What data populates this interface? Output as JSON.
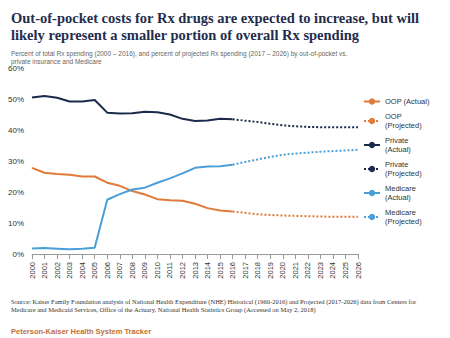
{
  "chart_data": {
    "type": "line",
    "title": "Out-of-pocket costs for Rx drugs are expected to increase, but will likely represent a smaller portion of overall Rx spending",
    "subtitle": "Percent of total Rx spending (2000 – 2016), and percent of projected Rx spending (2017 – 2026) by out-of-pocket vs. private insurance and Medicare",
    "source": "Source: Kaiser Family Foundation analysis of National Health Expenditure (NHE) Historical (1960-2016) and Projected (2017-2026) data from Centers for Medicare and Medicaid Services, Office of the Actuary, National Health Statistics Group (Accessed on May 2, 2018)",
    "footer": "Peterson-Kaiser Health System Tracker",
    "categories": [
      "2000",
      "2001",
      "2002",
      "2003",
      "2004",
      "2005",
      "2006",
      "2007",
      "2008",
      "2009",
      "2010",
      "2011",
      "2012",
      "2013",
      "2014",
      "2015",
      "2016",
      "2017",
      "2018",
      "2019",
      "2020",
      "2021",
      "2022",
      "2023",
      "2024",
      "2025",
      "2026"
    ],
    "series": [
      {
        "name": "OOP (Actual)",
        "color": "#e07b39",
        "line_style": "solid",
        "values": [
          27.8,
          26.2,
          25.8,
          25.6,
          25.0,
          25.0,
          23.0,
          22.0,
          20.3,
          19.2,
          17.7,
          17.3,
          17.2,
          16.2,
          14.8,
          14.0,
          13.7,
          null,
          null,
          null,
          null,
          null,
          null,
          null,
          null,
          null,
          null
        ]
      },
      {
        "name": "OOP (Projected)",
        "color": "#e07b39",
        "line_style": "dotted",
        "values": [
          null,
          null,
          null,
          null,
          null,
          null,
          null,
          null,
          null,
          null,
          null,
          null,
          null,
          null,
          null,
          null,
          13.7,
          13.3,
          12.8,
          12.6,
          12.4,
          12.3,
          12.2,
          12.1,
          12.0,
          12.0,
          12.0
        ]
      },
      {
        "name": "Private (Actual)",
        "color": "#1b2a4a",
        "line_style": "solid",
        "values": [
          50.5,
          51.0,
          50.4,
          49.2,
          49.2,
          49.7,
          45.6,
          45.3,
          45.4,
          45.9,
          45.7,
          45.0,
          43.6,
          42.9,
          43.1,
          43.6,
          43.5,
          null,
          null,
          null,
          null,
          null,
          null,
          null,
          null,
          null,
          null
        ]
      },
      {
        "name": "Private (Projected)",
        "color": "#1b2a4a",
        "line_style": "dotted",
        "values": [
          null,
          null,
          null,
          null,
          null,
          null,
          null,
          null,
          null,
          null,
          null,
          null,
          null,
          null,
          null,
          null,
          43.5,
          43.0,
          42.6,
          42.0,
          41.5,
          41.2,
          41.0,
          40.9,
          40.9,
          40.9,
          40.9
        ]
      },
      {
        "name": "Medicare (Actual)",
        "color": "#4a9fd8",
        "line_style": "solid",
        "values": [
          1.8,
          1.9,
          1.7,
          1.5,
          1.7,
          2.0,
          17.5,
          19.3,
          20.8,
          21.4,
          23.0,
          24.4,
          26.0,
          27.8,
          28.2,
          28.3,
          28.8,
          null,
          null,
          null,
          null,
          null,
          null,
          null,
          null,
          null,
          null
        ]
      },
      {
        "name": "Medicare (Projected)",
        "color": "#4a9fd8",
        "line_style": "dotted",
        "values": [
          null,
          null,
          null,
          null,
          null,
          null,
          null,
          null,
          null,
          null,
          null,
          null,
          null,
          null,
          null,
          null,
          28.8,
          29.7,
          30.5,
          31.3,
          32.0,
          32.4,
          32.7,
          33.0,
          33.2,
          33.4,
          33.6
        ]
      }
    ],
    "ylim": [
      0,
      60
    ],
    "yticks": [
      {
        "value": 0,
        "label": "0%"
      },
      {
        "value": 10,
        "label": "10%"
      },
      {
        "value": 20,
        "label": "20%"
      },
      {
        "value": 30,
        "label": "30%"
      },
      {
        "value": 40,
        "label": "40%"
      },
      {
        "value": 50,
        "label": "50%"
      },
      {
        "value": 60,
        "label": "60%"
      }
    ],
    "grid": false,
    "legend": "right"
  }
}
